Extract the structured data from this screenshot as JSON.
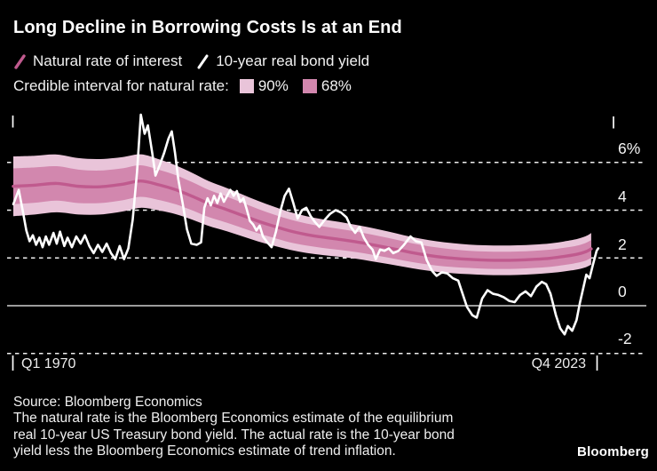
{
  "header": {
    "title": "Long Decline in Borrowing Costs Is at an End"
  },
  "legend": {
    "series": [
      {
        "label": "Natural rate of interest",
        "color": "#c05a8e"
      },
      {
        "label": "10-year real bond yield",
        "color": "#ffffff"
      }
    ],
    "interval_label": "Credible interval for natural rate:",
    "intervals": [
      {
        "label": "90%",
        "color": "#e9c4d9"
      },
      {
        "label": "68%",
        "color": "#d287ae"
      }
    ]
  },
  "chart_data": {
    "type": "line",
    "title": "Long Decline in Borrowing Costs Is at an End",
    "x_axis": {
      "start_label": "Q1 1970",
      "end_label": "Q4 2023",
      "domain": [
        1970.0,
        2023.75
      ]
    },
    "y_axis": {
      "ticks": [
        {
          "value": 6,
          "label": "6%"
        },
        {
          "value": 4,
          "label": "4"
        },
        {
          "value": 2,
          "label": "2"
        },
        {
          "value": 0,
          "label": "0"
        },
        {
          "value": -2,
          "label": "-2"
        }
      ],
      "zero_line": 0,
      "ylim": [
        -2.6,
        8.4
      ]
    },
    "grid": {
      "dash_color": "#eeeeee",
      "zero_color": "#cfcfcf"
    },
    "band_colors": {
      "p90": "#e9c4d9",
      "p68": "#d287ae"
    },
    "natural_rate": {
      "name": "Natural rate of interest",
      "color": "#c05a8e",
      "note": "points are [year, center, halfwidth68, halfwidth90] in percent",
      "points": [
        [
          1970.0,
          5.0,
          0.75,
          1.25
        ],
        [
          1972.0,
          5.05,
          0.74,
          1.23
        ],
        [
          1974.0,
          5.12,
          0.72,
          1.21
        ],
        [
          1976.0,
          5.0,
          0.7,
          1.18
        ],
        [
          1978.0,
          4.98,
          0.68,
          1.16
        ],
        [
          1980.0,
          5.08,
          0.67,
          1.14
        ],
        [
          1981.75,
          5.22,
          0.66,
          1.12
        ],
        [
          1983.5,
          5.05,
          0.63,
          1.07
        ],
        [
          1985.0,
          4.85,
          0.61,
          1.02
        ],
        [
          1986.5,
          4.58,
          0.59,
          0.98
        ],
        [
          1988.0,
          4.28,
          0.57,
          0.94
        ],
        [
          1989.5,
          4.05,
          0.55,
          0.91
        ],
        [
          1991.0,
          3.8,
          0.53,
          0.88
        ],
        [
          1992.5,
          3.55,
          0.51,
          0.85
        ],
        [
          1994.0,
          3.33,
          0.49,
          0.82
        ],
        [
          1995.5,
          3.13,
          0.48,
          0.79
        ],
        [
          1997.0,
          2.98,
          0.46,
          0.77
        ],
        [
          1998.5,
          2.87,
          0.45,
          0.75
        ],
        [
          2000.0,
          2.78,
          0.44,
          0.73
        ],
        [
          2001.5,
          2.68,
          0.43,
          0.71
        ],
        [
          2003.0,
          2.56,
          0.42,
          0.7
        ],
        [
          2004.5,
          2.43,
          0.41,
          0.68
        ],
        [
          2006.0,
          2.29,
          0.4,
          0.66
        ],
        [
          2007.5,
          2.16,
          0.39,
          0.65
        ],
        [
          2009.0,
          2.06,
          0.38,
          0.64
        ],
        [
          2010.5,
          1.99,
          0.37,
          0.63
        ],
        [
          2012.0,
          1.94,
          0.36,
          0.62
        ],
        [
          2013.5,
          1.91,
          0.36,
          0.62
        ],
        [
          2015.0,
          1.9,
          0.36,
          0.62
        ],
        [
          2016.5,
          1.91,
          0.36,
          0.62
        ],
        [
          2018.0,
          1.94,
          0.36,
          0.62
        ],
        [
          2019.5,
          1.99,
          0.36,
          0.62
        ],
        [
          2021.0,
          2.08,
          0.36,
          0.63
        ],
        [
          2022.0,
          2.16,
          0.36,
          0.64
        ],
        [
          2022.75,
          2.26,
          0.37,
          0.65
        ],
        [
          2023.25,
          2.38,
          0.37,
          0.66
        ]
      ]
    },
    "bond_yield": {
      "name": "10-year real bond yield",
      "color": "#ffffff",
      "note": "points are [year, percent]",
      "points": [
        [
          1970.0,
          4.25
        ],
        [
          1970.5,
          4.85
        ],
        [
          1970.9,
          3.9
        ],
        [
          1971.2,
          3.15
        ],
        [
          1971.5,
          2.7
        ],
        [
          1971.8,
          2.95
        ],
        [
          1972.1,
          2.55
        ],
        [
          1972.4,
          2.85
        ],
        [
          1972.7,
          2.45
        ],
        [
          1973.0,
          2.9
        ],
        [
          1973.3,
          2.55
        ],
        [
          1973.7,
          3.05
        ],
        [
          1974.0,
          2.6
        ],
        [
          1974.3,
          3.1
        ],
        [
          1974.7,
          2.5
        ],
        [
          1975.0,
          2.85
        ],
        [
          1975.4,
          2.45
        ],
        [
          1975.8,
          2.9
        ],
        [
          1976.2,
          2.6
        ],
        [
          1976.6,
          2.95
        ],
        [
          1977.0,
          2.5
        ],
        [
          1977.4,
          2.2
        ],
        [
          1977.8,
          2.55
        ],
        [
          1978.2,
          2.25
        ],
        [
          1978.6,
          2.6
        ],
        [
          1979.0,
          2.2
        ],
        [
          1979.4,
          1.95
        ],
        [
          1979.8,
          2.5
        ],
        [
          1980.2,
          1.95
        ],
        [
          1980.6,
          2.4
        ],
        [
          1981.0,
          3.6
        ],
        [
          1981.4,
          5.6
        ],
        [
          1981.75,
          8.0
        ],
        [
          1982.1,
          7.2
        ],
        [
          1982.4,
          7.55
        ],
        [
          1982.8,
          6.4
        ],
        [
          1983.1,
          5.45
        ],
        [
          1983.5,
          5.9
        ],
        [
          1983.9,
          6.4
        ],
        [
          1984.3,
          7.0
        ],
        [
          1984.6,
          7.3
        ],
        [
          1984.9,
          6.4
        ],
        [
          1985.2,
          5.3
        ],
        [
          1985.6,
          4.3
        ],
        [
          1986.0,
          3.2
        ],
        [
          1986.4,
          2.6
        ],
        [
          1986.9,
          2.55
        ],
        [
          1987.3,
          2.65
        ],
        [
          1987.6,
          4.1
        ],
        [
          1987.9,
          4.5
        ],
        [
          1988.2,
          4.2
        ],
        [
          1988.5,
          4.6
        ],
        [
          1988.8,
          4.3
        ],
        [
          1989.1,
          4.7
        ],
        [
          1989.4,
          4.35
        ],
        [
          1989.7,
          4.6
        ],
        [
          1990.0,
          4.85
        ],
        [
          1990.3,
          4.6
        ],
        [
          1990.6,
          4.8
        ],
        [
          1990.9,
          4.35
        ],
        [
          1991.2,
          4.5
        ],
        [
          1991.5,
          4.05
        ],
        [
          1991.8,
          3.55
        ],
        [
          1992.1,
          3.4
        ],
        [
          1992.4,
          3.15
        ],
        [
          1992.7,
          3.35
        ],
        [
          1993.0,
          2.9
        ],
        [
          1993.4,
          2.65
        ],
        [
          1993.8,
          2.45
        ],
        [
          1994.2,
          3.1
        ],
        [
          1994.6,
          3.95
        ],
        [
          1995.0,
          4.6
        ],
        [
          1995.4,
          4.9
        ],
        [
          1995.8,
          4.3
        ],
        [
          1996.2,
          3.65
        ],
        [
          1996.6,
          4.0
        ],
        [
          1997.0,
          4.1
        ],
        [
          1997.4,
          3.75
        ],
        [
          1997.8,
          3.5
        ],
        [
          1998.2,
          3.3
        ],
        [
          1998.7,
          3.6
        ],
        [
          1999.2,
          3.85
        ],
        [
          1999.7,
          4.0
        ],
        [
          2000.2,
          3.9
        ],
        [
          2000.7,
          3.7
        ],
        [
          2001.1,
          3.3
        ],
        [
          2001.5,
          3.05
        ],
        [
          2001.9,
          3.3
        ],
        [
          2002.3,
          2.85
        ],
        [
          2002.7,
          2.55
        ],
        [
          2003.1,
          2.35
        ],
        [
          2003.4,
          1.95
        ],
        [
          2003.8,
          2.35
        ],
        [
          2004.2,
          2.3
        ],
        [
          2004.6,
          2.4
        ],
        [
          2005.0,
          2.2
        ],
        [
          2005.5,
          2.3
        ],
        [
          2006.0,
          2.55
        ],
        [
          2006.6,
          2.9
        ],
        [
          2007.1,
          2.7
        ],
        [
          2007.6,
          2.65
        ],
        [
          2008.1,
          1.9
        ],
        [
          2008.6,
          1.45
        ],
        [
          2009.0,
          1.25
        ],
        [
          2009.5,
          1.4
        ],
        [
          2010.0,
          1.35
        ],
        [
          2010.5,
          1.15
        ],
        [
          2011.0,
          1.05
        ],
        [
          2011.4,
          0.5
        ],
        [
          2011.8,
          -0.05
        ],
        [
          2012.3,
          -0.4
        ],
        [
          2012.7,
          -0.5
        ],
        [
          2013.2,
          0.3
        ],
        [
          2013.7,
          0.65
        ],
        [
          2014.2,
          0.5
        ],
        [
          2014.7,
          0.45
        ],
        [
          2015.2,
          0.35
        ],
        [
          2015.7,
          0.2
        ],
        [
          2016.2,
          0.15
        ],
        [
          2016.7,
          0.45
        ],
        [
          2017.2,
          0.6
        ],
        [
          2017.7,
          0.4
        ],
        [
          2018.2,
          0.8
        ],
        [
          2018.7,
          1.0
        ],
        [
          2019.1,
          0.9
        ],
        [
          2019.5,
          0.5
        ],
        [
          2020.0,
          -0.4
        ],
        [
          2020.4,
          -0.95
        ],
        [
          2020.8,
          -1.2
        ],
        [
          2021.1,
          -0.85
        ],
        [
          2021.5,
          -1.05
        ],
        [
          2021.9,
          -0.6
        ],
        [
          2022.2,
          0.1
        ],
        [
          2022.5,
          0.7
        ],
        [
          2022.8,
          1.3
        ],
        [
          2023.1,
          1.15
        ],
        [
          2023.4,
          1.7
        ],
        [
          2023.75,
          2.3
        ],
        [
          2023.9,
          2.4
        ]
      ]
    }
  },
  "footer": {
    "source": "Source: Bloomberg Economics",
    "note_lines": [
      "The natural rate is the Bloomberg Economics estimate of the equilibrium",
      "real 10-year US Treasury bond yield. The actual rate is the 10-year bond",
      "yield less the Bloomberg Economics estimate of trend inflation."
    ],
    "logo": "Bloomberg"
  }
}
